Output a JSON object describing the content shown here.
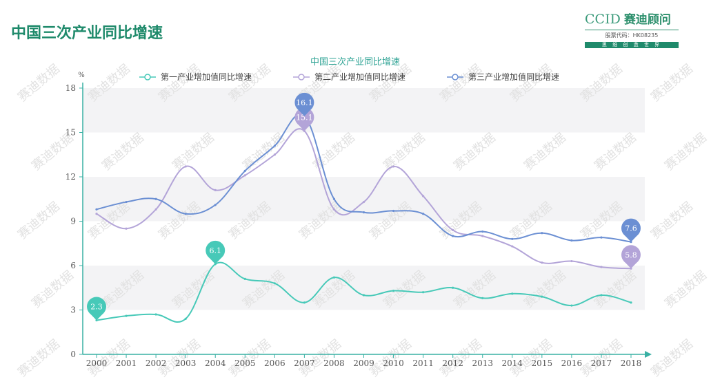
{
  "page": {
    "title": "中国三次产业同比增速"
  },
  "logo": {
    "brand_latin": "CCID",
    "brand_cn": "赛迪顾问",
    "stock_code": "股票代码：HK08235",
    "slogan": "思 维 创 造 世 界"
  },
  "watermark": {
    "text": "赛迪数据"
  },
  "colors": {
    "primary_series": "#47c9b8",
    "secondary_series": "#b3a4d8",
    "tertiary_series": "#6b8fd3",
    "title_green": "#1f8a6b",
    "axis": "#38b0a4"
  },
  "chart_data": {
    "type": "line",
    "title": "中国三次产业同比增速",
    "ylabel": "%",
    "xlabel": "",
    "ylim": [
      0,
      18
    ],
    "yticks": [
      0,
      3,
      6,
      9,
      12,
      15,
      18
    ],
    "grid": "horizontal bands",
    "legend_position": "top-center",
    "x": [
      "2000",
      "2001",
      "2002",
      "2003",
      "2004",
      "2005",
      "2006",
      "2007",
      "2008",
      "2009",
      "2010",
      "2011",
      "2012",
      "2013",
      "2014",
      "2015",
      "2016",
      "2017",
      "2018"
    ],
    "series": [
      {
        "name": "第一产业增加值同比增速",
        "color": "#47c9b8",
        "values": [
          2.3,
          2.6,
          2.7,
          2.4,
          6.1,
          5.1,
          4.8,
          3.5,
          5.2,
          4.0,
          4.3,
          4.2,
          4.5,
          3.8,
          4.1,
          3.9,
          3.3,
          4.0,
          3.5
        ],
        "markers": [
          {
            "year": "2000",
            "value": 2.3,
            "label": "2.3"
          },
          {
            "year": "2004",
            "value": 6.1,
            "label": "6.1"
          }
        ]
      },
      {
        "name": "第二产业增加值同比增速",
        "color": "#b3a4d8",
        "values": [
          9.5,
          8.5,
          9.8,
          12.7,
          11.1,
          12.1,
          13.5,
          15.1,
          9.8,
          10.3,
          12.7,
          10.7,
          8.4,
          8.0,
          7.3,
          6.2,
          6.3,
          5.9,
          5.8
        ],
        "markers": [
          {
            "year": "2007",
            "value": 15.1,
            "label": "15.1"
          },
          {
            "year": "2018",
            "value": 5.8,
            "label": "5.8"
          }
        ]
      },
      {
        "name": "第三产业增加值同比增速",
        "color": "#6b8fd3",
        "values": [
          9.8,
          10.3,
          10.5,
          9.5,
          10.1,
          12.4,
          14.1,
          16.1,
          10.5,
          9.6,
          9.7,
          9.5,
          8.0,
          8.3,
          7.8,
          8.2,
          7.7,
          7.9,
          7.6
        ],
        "markers": [
          {
            "year": "2007",
            "value": 16.1,
            "label": "16.1"
          },
          {
            "year": "2018",
            "value": 7.6,
            "label": "7.6"
          }
        ]
      }
    ]
  }
}
